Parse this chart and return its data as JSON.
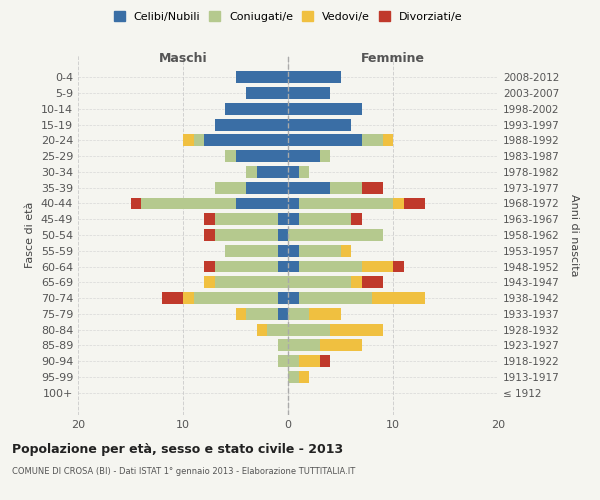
{
  "age_groups": [
    "100+",
    "95-99",
    "90-94",
    "85-89",
    "80-84",
    "75-79",
    "70-74",
    "65-69",
    "60-64",
    "55-59",
    "50-54",
    "45-49",
    "40-44",
    "35-39",
    "30-34",
    "25-29",
    "20-24",
    "15-19",
    "10-14",
    "5-9",
    "0-4"
  ],
  "birth_years": [
    "≤ 1912",
    "1913-1917",
    "1918-1922",
    "1923-1927",
    "1928-1932",
    "1933-1937",
    "1938-1942",
    "1943-1947",
    "1948-1952",
    "1953-1957",
    "1958-1962",
    "1963-1967",
    "1968-1972",
    "1973-1977",
    "1978-1982",
    "1983-1987",
    "1988-1992",
    "1993-1997",
    "1998-2002",
    "2003-2007",
    "2008-2012"
  ],
  "males": {
    "celibi": [
      0,
      0,
      0,
      0,
      0,
      1,
      1,
      0,
      1,
      1,
      1,
      1,
      5,
      4,
      3,
      5,
      8,
      7,
      6,
      4,
      5
    ],
    "coniugati": [
      0,
      0,
      1,
      1,
      2,
      3,
      8,
      7,
      6,
      5,
      6,
      6,
      9,
      3,
      1,
      1,
      1,
      0,
      0,
      0,
      0
    ],
    "vedovi": [
      0,
      0,
      0,
      0,
      1,
      1,
      1,
      1,
      0,
      0,
      0,
      0,
      0,
      0,
      0,
      0,
      1,
      0,
      0,
      0,
      0
    ],
    "divorziati": [
      0,
      0,
      0,
      0,
      0,
      0,
      2,
      0,
      1,
      0,
      1,
      1,
      1,
      0,
      0,
      0,
      0,
      0,
      0,
      0,
      0
    ]
  },
  "females": {
    "nubili": [
      0,
      0,
      0,
      0,
      0,
      0,
      1,
      0,
      1,
      1,
      0,
      1,
      1,
      4,
      1,
      3,
      7,
      6,
      7,
      4,
      5
    ],
    "coniugate": [
      0,
      1,
      1,
      3,
      4,
      2,
      7,
      6,
      6,
      4,
      9,
      5,
      9,
      3,
      1,
      1,
      2,
      0,
      0,
      0,
      0
    ],
    "vedove": [
      0,
      1,
      2,
      4,
      5,
      3,
      5,
      1,
      3,
      1,
      0,
      0,
      1,
      0,
      0,
      0,
      1,
      0,
      0,
      0,
      0
    ],
    "divorziate": [
      0,
      0,
      1,
      0,
      0,
      0,
      0,
      2,
      1,
      0,
      0,
      1,
      2,
      2,
      0,
      0,
      0,
      0,
      0,
      0,
      0
    ]
  },
  "colors": {
    "celibi": "#3A6EA5",
    "coniugati": "#B5C98E",
    "vedovi": "#F0C040",
    "divorziati": "#C0392B"
  },
  "xlim": [
    -20,
    20
  ],
  "xticks": [
    -20,
    -10,
    0,
    10,
    20
  ],
  "xticklabels": [
    "20",
    "10",
    "0",
    "10",
    "20"
  ],
  "title": "Popolazione per età, sesso e stato civile - 2013",
  "subtitle": "COMUNE DI CROSA (BI) - Dati ISTAT 1° gennaio 2013 - Elaborazione TUTTITALIA.IT",
  "ylabel_left": "Fasce di età",
  "ylabel_right": "Anni di nascita",
  "label_maschi": "Maschi",
  "label_femmine": "Femmine",
  "legend_labels": [
    "Celibi/Nubili",
    "Coniugati/e",
    "Vedovi/e",
    "Divorziati/e"
  ],
  "background_color": "#f5f5f0",
  "grid_color": "#cccccc"
}
